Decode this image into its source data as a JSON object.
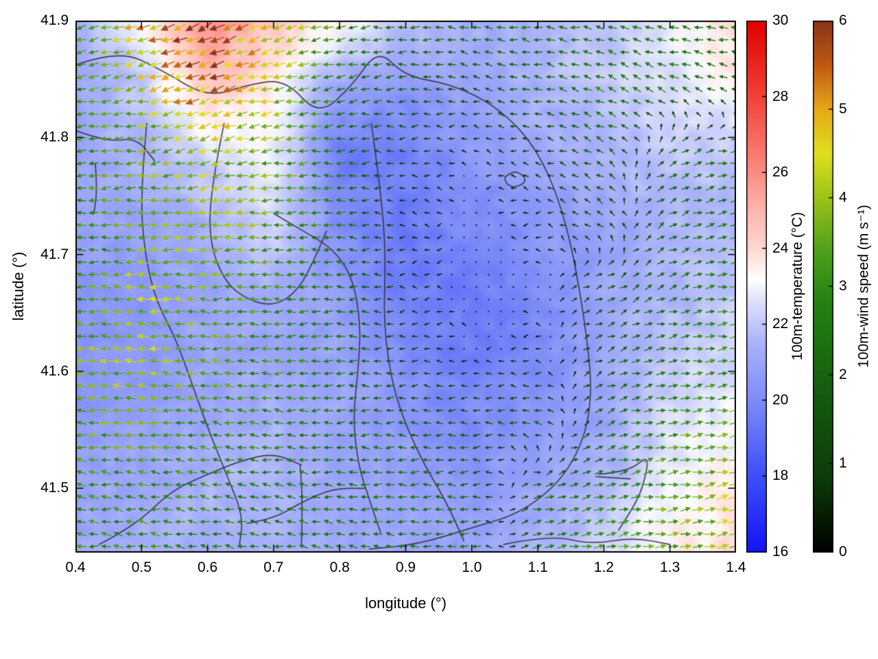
{
  "chart_data": {
    "type": "heatmap",
    "subtype": "temperature-field-with-wind-quiver-and-contours",
    "x": {
      "label": "longitude (°)",
      "min": 0.4,
      "max": 1.4,
      "ticks": [
        "0.4",
        "0.5",
        "0.6",
        "0.7",
        "0.8",
        "0.9",
        "1.0",
        "1.1",
        "1.2",
        "1.3",
        "1.4"
      ]
    },
    "y": {
      "label": "latitude (°)",
      "min": 41.445,
      "max": 41.9,
      "ticks": [
        "41.5",
        "41.6",
        "41.7",
        "41.8",
        "41.9"
      ]
    },
    "temperature": {
      "label": "100m-temperature (°C)",
      "min": 16,
      "max": 30,
      "ticks": [
        "16",
        "18",
        "20",
        "22",
        "24",
        "26",
        "28",
        "30"
      ],
      "colormap": [
        [
          16,
          "#1414f5"
        ],
        [
          18,
          "#3c50fa"
        ],
        [
          20,
          "#7e8cf8"
        ],
        [
          21.5,
          "#aab2fa"
        ],
        [
          22.5,
          "#d8dcfc"
        ],
        [
          23.2,
          "#ffffff"
        ],
        [
          24,
          "#ffd8d2"
        ],
        [
          25,
          "#ffb6ae"
        ],
        [
          26,
          "#fb8c84"
        ],
        [
          28,
          "#f24238"
        ],
        [
          30,
          "#e10000"
        ]
      ],
      "grid": {
        "lons": [
          0.4,
          0.5,
          0.6,
          0.7,
          0.8,
          0.9,
          1.0,
          1.1,
          1.2,
          1.3,
          1.4
        ],
        "lats": [
          41.9,
          41.843,
          41.786,
          41.729,
          41.672,
          41.615,
          41.558,
          41.501,
          41.445
        ],
        "values": [
          [
            21.5,
            23.0,
            26.0,
            24.5,
            23.5,
            22.0,
            21.5,
            21.5,
            22.0,
            23.0,
            24.0
          ],
          [
            21.0,
            22.0,
            24.5,
            23.5,
            21.0,
            20.5,
            21.0,
            21.5,
            22.0,
            22.5,
            23.5
          ],
          [
            21.0,
            21.5,
            22.5,
            23.0,
            19.5,
            19.5,
            20.5,
            21.0,
            21.5,
            22.0,
            22.0
          ],
          [
            21.0,
            21.0,
            21.5,
            22.5,
            20.0,
            19.5,
            20.0,
            20.5,
            21.0,
            21.5,
            21.5
          ],
          [
            20.5,
            20.5,
            21.0,
            21.5,
            20.5,
            19.5,
            19.5,
            20.0,
            21.0,
            21.5,
            22.0
          ],
          [
            20.5,
            20.5,
            21.0,
            21.0,
            21.0,
            20.0,
            19.5,
            20.0,
            21.0,
            22.0,
            22.5
          ],
          [
            20.5,
            21.0,
            21.0,
            21.5,
            21.0,
            20.5,
            20.0,
            20.5,
            21.0,
            22.5,
            23.0
          ],
          [
            21.0,
            21.0,
            21.5,
            21.5,
            21.0,
            21.0,
            20.5,
            21.0,
            21.5,
            23.0,
            23.5
          ],
          [
            21.0,
            21.5,
            21.5,
            21.5,
            21.0,
            21.0,
            21.0,
            21.5,
            22.5,
            23.5,
            24.0
          ]
        ]
      }
    },
    "wind": {
      "label": "100m-wind speed (m s⁻¹)",
      "min": 0,
      "max": 6,
      "ticks": [
        "0",
        "1",
        "2",
        "3",
        "4",
        "5",
        "6"
      ],
      "arrow_spacing_px": 18,
      "colormap": [
        [
          0,
          "#000000"
        ],
        [
          0.8,
          "#0c3a08"
        ],
        [
          1.8,
          "#155c0e"
        ],
        [
          2.8,
          "#228212"
        ],
        [
          3.4,
          "#4ea01c"
        ],
        [
          4.0,
          "#9cc418"
        ],
        [
          4.5,
          "#e0e01e"
        ],
        [
          5.0,
          "#e8a818"
        ],
        [
          5.5,
          "#c05a12"
        ],
        [
          6,
          "#8a3418"
        ]
      ],
      "grid": {
        "lons": [
          0.4,
          0.5,
          0.6,
          0.7,
          0.8,
          0.9,
          1.0,
          1.1,
          1.2,
          1.3,
          1.4
        ],
        "lats": [
          41.9,
          41.843,
          41.786,
          41.729,
          41.672,
          41.615,
          41.558,
          41.501,
          41.445
        ],
        "u": [
          [
            -3.0,
            -4.5,
            -5.5,
            -4.0,
            -3.0,
            -2.5,
            -2.5,
            -2.5,
            -2.5,
            -2.5,
            -2.5
          ],
          [
            -3.0,
            -4.0,
            -5.0,
            -4.0,
            -2.5,
            -2.0,
            -1.5,
            -2.0,
            -2.5,
            -2.5,
            -2.0
          ],
          [
            -3.0,
            -3.5,
            -4.0,
            -3.5,
            -2.5,
            -1.0,
            -0.3,
            -1.0,
            -2.0,
            2.0,
            2.5
          ],
          [
            -3.0,
            -3.5,
            -4.0,
            -3.5,
            -2.5,
            -0.5,
            -0.2,
            -0.5,
            -1.5,
            2.0,
            2.5
          ],
          [
            -3.0,
            -4.0,
            -3.5,
            -3.0,
            -2.5,
            -0.5,
            -0.2,
            -0.3,
            1.5,
            2.0,
            3.0
          ],
          [
            -3.5,
            -4.0,
            -3.5,
            -3.0,
            -2.5,
            -1.0,
            -0.3,
            -0.5,
            1.5,
            2.5,
            3.0
          ],
          [
            -3.5,
            -3.5,
            -3.0,
            -3.0,
            -2.5,
            -2.0,
            -1.5,
            -2.0,
            2.0,
            3.0,
            3.5
          ],
          [
            -3.0,
            -3.0,
            -3.0,
            -2.5,
            -2.5,
            -2.5,
            -2.0,
            2.0,
            2.5,
            3.5,
            4.0
          ],
          [
            -3.0,
            -3.0,
            -2.5,
            -2.5,
            -2.5,
            -2.5,
            -2.5,
            2.5,
            3.0,
            3.5,
            4.0
          ]
        ],
        "v": [
          [
            -0.5,
            -1.5,
            -2.5,
            -1.5,
            -0.5,
            0.0,
            0.5,
            0.5,
            0.5,
            0.5,
            0.5
          ],
          [
            -0.5,
            -1.0,
            -2.0,
            -1.0,
            -0.5,
            0.0,
            0.3,
            0.5,
            1.0,
            1.0,
            0.5
          ],
          [
            0.0,
            -0.5,
            -1.0,
            -0.5,
            0.0,
            0.0,
            0.0,
            0.3,
            1.0,
            1.0,
            0.5
          ],
          [
            0.0,
            0.0,
            -0.5,
            0.0,
            0.0,
            0.0,
            0.0,
            0.0,
            1.0,
            1.0,
            0.5
          ],
          [
            0.3,
            0.3,
            0.0,
            0.0,
            0.0,
            0.0,
            0.0,
            0.0,
            0.8,
            0.8,
            0.5
          ],
          [
            0.3,
            0.5,
            0.3,
            0.0,
            0.0,
            0.0,
            0.0,
            0.0,
            0.8,
            0.5,
            0.5
          ],
          [
            0.3,
            0.5,
            0.5,
            0.3,
            0.0,
            0.0,
            0.0,
            0.3,
            0.8,
            0.5,
            0.5
          ],
          [
            0.3,
            0.5,
            0.5,
            0.3,
            0.3,
            0.0,
            0.0,
            0.5,
            0.8,
            0.5,
            1.0
          ],
          [
            0.3,
            0.5,
            0.5,
            0.5,
            0.3,
            0.3,
            0.0,
            0.5,
            0.8,
            0.5,
            1.0
          ]
        ]
      }
    },
    "contours": {
      "color": "#35313c",
      "paths": [
        [
          [
            0.4,
            41.862
          ],
          [
            0.465,
            41.875
          ],
          [
            0.53,
            41.858
          ],
          [
            0.6,
            41.834
          ],
          [
            0.66,
            41.845
          ],
          [
            0.718,
            41.85
          ],
          [
            0.768,
            41.818
          ],
          [
            0.82,
            41.845
          ],
          [
            0.858,
            41.876
          ],
          [
            0.9,
            41.852
          ],
          [
            0.968,
            41.846
          ],
          [
            1.04,
            41.826
          ],
          [
            1.1,
            41.79
          ],
          [
            1.142,
            41.732
          ],
          [
            1.17,
            41.65
          ],
          [
            1.185,
            41.57
          ],
          [
            1.15,
            41.515
          ],
          [
            1.08,
            41.48
          ],
          [
            1.0,
            41.466
          ],
          [
            0.918,
            41.452
          ],
          [
            0.845,
            41.448
          ]
        ],
        [
          [
            0.4,
            41.806
          ],
          [
            0.448,
            41.796
          ],
          [
            0.492,
            41.8
          ],
          [
            0.52,
            41.78
          ]
        ],
        [
          [
            0.508,
            41.812
          ],
          [
            0.498,
            41.752
          ],
          [
            0.505,
            41.7
          ],
          [
            0.522,
            41.66
          ],
          [
            0.552,
            41.628
          ],
          [
            0.576,
            41.59
          ],
          [
            0.6,
            41.552
          ],
          [
            0.63,
            41.51
          ],
          [
            0.654,
            41.476
          ],
          [
            0.648,
            41.45
          ]
        ],
        [
          [
            0.625,
            41.812
          ],
          [
            0.606,
            41.76
          ],
          [
            0.602,
            41.712
          ],
          [
            0.626,
            41.676
          ],
          [
            0.664,
            41.66
          ],
          [
            0.704,
            41.656
          ],
          [
            0.738,
            41.67
          ],
          [
            0.762,
            41.696
          ],
          [
            0.78,
            41.72
          ]
        ],
        [
          [
            0.7,
            41.735
          ],
          [
            0.745,
            41.72
          ],
          [
            0.79,
            41.705
          ],
          [
            0.82,
            41.68
          ],
          [
            0.832,
            41.64
          ],
          [
            0.828,
            41.6
          ],
          [
            0.82,
            41.56
          ],
          [
            0.828,
            41.52
          ],
          [
            0.845,
            41.49
          ],
          [
            0.862,
            41.462
          ]
        ],
        [
          [
            0.848,
            41.812
          ],
          [
            0.862,
            41.755
          ],
          [
            0.87,
            41.7
          ],
          [
            0.866,
            41.64
          ],
          [
            0.882,
            41.58
          ],
          [
            0.92,
            41.528
          ],
          [
            0.962,
            41.488
          ],
          [
            0.988,
            41.455
          ]
        ],
        [
          [
            1.05,
            41.766
          ],
          [
            1.062,
            41.772
          ],
          [
            1.078,
            41.768
          ],
          [
            1.082,
            41.762
          ],
          [
            1.066,
            41.757
          ],
          [
            1.052,
            41.76
          ],
          [
            1.05,
            41.766
          ]
        ],
        [
          [
            0.43,
            41.778
          ],
          [
            0.433,
            41.756
          ],
          [
            0.428,
            41.735
          ]
        ],
        [
          [
            0.436,
            41.452
          ],
          [
            0.49,
            41.468
          ],
          [
            0.545,
            41.498
          ],
          [
            0.6,
            41.512
          ],
          [
            0.652,
            41.524
          ],
          [
            0.7,
            41.53
          ],
          [
            0.742,
            41.52
          ]
        ],
        [
          [
            0.66,
            41.47
          ],
          [
            0.7,
            41.474
          ],
          [
            0.742,
            41.488
          ],
          [
            0.79,
            41.5
          ],
          [
            0.838,
            41.5
          ]
        ],
        [
          [
            0.742,
            41.452
          ],
          [
            0.744,
            41.488
          ],
          [
            0.74,
            41.52
          ]
        ],
        [
          [
            1.192,
            41.512
          ],
          [
            1.238,
            41.514
          ],
          [
            1.27,
            41.53
          ],
          [
            1.258,
            41.498
          ],
          [
            1.238,
            41.478
          ],
          [
            1.222,
            41.464
          ]
        ],
        [
          [
            1.188,
            41.51
          ],
          [
            1.24,
            41.508
          ]
        ],
        [
          [
            1.048,
            41.452
          ],
          [
            1.12,
            41.46
          ],
          [
            1.18,
            41.452
          ],
          [
            1.244,
            41.458
          ],
          [
            1.3,
            41.452
          ]
        ]
      ]
    }
  }
}
